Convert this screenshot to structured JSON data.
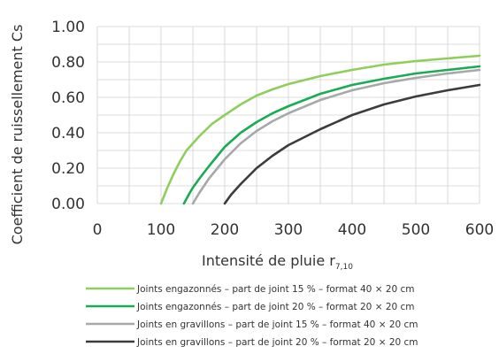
{
  "chart_data": {
    "type": "line",
    "title": "",
    "xlabel": "Intensité de pluie r",
    "xlabel_subscript": "7,10",
    "ylabel": "Coefficient de ruissellement Cs",
    "xlim": [
      0,
      600
    ],
    "ylim": [
      0,
      1
    ],
    "x_ticks": [
      0,
      100,
      200,
      300,
      400,
      500,
      600
    ],
    "x_tick_labels": [
      "0",
      "100",
      "200",
      "300",
      "400",
      "500",
      "600"
    ],
    "y_ticks": [
      0,
      0.2,
      0.4,
      0.6,
      0.8,
      1.0
    ],
    "y_tick_labels": [
      "0.00",
      "0.20",
      "0.40",
      "0.60",
      "0.80",
      "1.00"
    ],
    "grid": true,
    "legend_position": "bottom",
    "series": [
      {
        "name": "Joints engazonnés – part de joint 15 % – format 40 × 20 cm",
        "color": "#8fce5a",
        "x": [
          100,
          110,
          120,
          130,
          140,
          150,
          160,
          180,
          200,
          225,
          250,
          275,
          300,
          350,
          400,
          450,
          500,
          550,
          600
        ],
        "y": [
          0,
          0.09,
          0.17,
          0.24,
          0.3,
          0.34,
          0.38,
          0.45,
          0.5,
          0.56,
          0.61,
          0.645,
          0.675,
          0.72,
          0.755,
          0.785,
          0.805,
          0.82,
          0.835
        ]
      },
      {
        "name": "Joints engazonnés – part de joint 20 % – format 20 × 20 cm",
        "color": "#1aab55",
        "x": [
          136,
          145,
          150,
          160,
          175,
          200,
          225,
          250,
          275,
          300,
          350,
          400,
          450,
          500,
          550,
          600
        ],
        "y": [
          0,
          0.06,
          0.09,
          0.14,
          0.21,
          0.32,
          0.4,
          0.46,
          0.51,
          0.55,
          0.62,
          0.67,
          0.705,
          0.735,
          0.755,
          0.775
        ]
      },
      {
        "name": "Joints en gravillons – part de joint 15 % – format 40 × 20 cm",
        "color": "#a8a8a8",
        "x": [
          150,
          160,
          175,
          200,
          225,
          250,
          275,
          300,
          350,
          400,
          450,
          500,
          550,
          600
        ],
        "y": [
          0,
          0.06,
          0.14,
          0.25,
          0.34,
          0.41,
          0.465,
          0.51,
          0.585,
          0.64,
          0.68,
          0.71,
          0.735,
          0.755
        ]
      },
      {
        "name": "Joints en gravillons – part de joint 20 % – format 20 × 20 cm",
        "color": "#3c3c3c",
        "x": [
          200,
          210,
          225,
          250,
          275,
          300,
          350,
          400,
          450,
          500,
          550,
          600
        ],
        "y": [
          0,
          0.05,
          0.11,
          0.2,
          0.27,
          0.33,
          0.42,
          0.5,
          0.56,
          0.605,
          0.64,
          0.67
        ]
      }
    ]
  }
}
